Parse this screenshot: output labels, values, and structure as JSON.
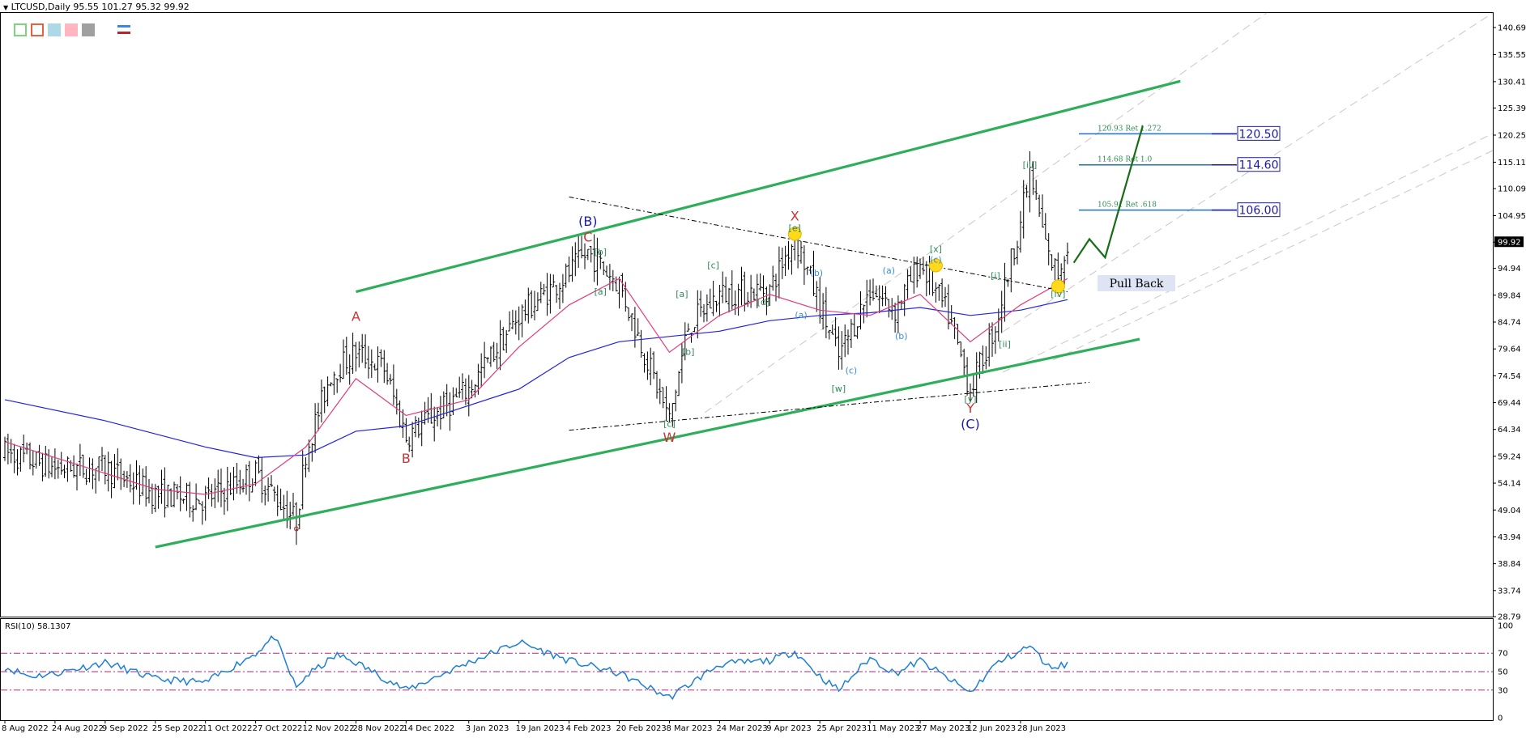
{
  "header": {
    "symbol_line": "LTCUSD,Daily  95.55 101.27 95.32 99.92",
    "rsi_line": "RSI(10) 58.1307"
  },
  "toolbar": {
    "buttons": [
      {
        "name": "color-box-green",
        "border": "#7ed37e",
        "fill": "#ffffff"
      },
      {
        "name": "color-box-red",
        "border": "#e8603c",
        "fill": "#ffffff"
      },
      {
        "name": "color-box-lightblue",
        "border": "#add8e6",
        "fill": "#add8e6"
      },
      {
        "name": "color-box-pink",
        "border": "#ffb6c1",
        "fill": "#ffb6c1"
      },
      {
        "name": "color-box-gray",
        "border": "#a0a0a0",
        "fill": "#a0a0a0"
      }
    ]
  },
  "chart_data": {
    "type": "candlestick",
    "symbol": "LTCUSD",
    "timeframe": "Daily",
    "ohlc_last": {
      "open": 95.55,
      "high": 101.27,
      "low": 95.32,
      "close": 99.92
    },
    "price_axis": {
      "ticks": [
        140.69,
        135.55,
        130.41,
        125.39,
        120.25,
        115.11,
        110.09,
        104.95,
        99.92,
        94.94,
        89.84,
        84.74,
        79.64,
        74.54,
        69.44,
        64.34,
        59.24,
        54.14,
        49.04,
        43.94,
        38.84,
        33.74,
        28.79
      ],
      "current_price": "99.92",
      "ylim": [
        28.79,
        140.69
      ]
    },
    "time_axis": [
      "8 Aug 2022",
      "24 Aug 2022",
      "9 Sep 2022",
      "25 Sep 2022",
      "11 Oct 2022",
      "27 Oct 2022",
      "12 Nov 2022",
      "28 Nov 2022",
      "14 Dec 2022",
      "3 Jan 2023",
      "19 Jan 2023",
      "4 Feb 2023",
      "20 Feb 2023",
      "8 Mar 2023",
      "24 Mar 2023",
      "9 Apr 2023",
      "25 Apr 2023",
      "11 May 2023",
      "27 May 2023",
      "12 Jun 2023",
      "28 Jun 2023"
    ],
    "price_path": [
      {
        "t": "8 Aug 2022",
        "p": 60
      },
      {
        "t": "24 Aug 2022",
        "p": 57
      },
      {
        "t": "9 Sep 2022",
        "p": 57
      },
      {
        "t": "25 Sep 2022",
        "p": 52
      },
      {
        "t": "11 Oct 2022",
        "p": 51
      },
      {
        "t": "27 Oct 2022",
        "p": 56
      },
      {
        "t": "9 Nov 2022",
        "p": 47
      },
      {
        "t": "12 Nov 2022",
        "p": 60
      },
      {
        "t": "20 Nov 2022",
        "p": 75
      },
      {
        "t": "28 Nov 2022",
        "p": 79
      },
      {
        "t": "7 Dec 2022",
        "p": 76
      },
      {
        "t": "14 Dec 2022",
        "p": 63
      },
      {
        "t": "3 Jan 2023",
        "p": 72
      },
      {
        "t": "19 Jan 2023",
        "p": 86
      },
      {
        "t": "4 Feb 2023",
        "p": 94
      },
      {
        "t": "10 Feb 2023",
        "p": 98
      },
      {
        "t": "20 Feb 2023",
        "p": 92
      },
      {
        "t": "8 Mar 2023",
        "p": 66
      },
      {
        "t": "14 Mar 2023",
        "p": 84
      },
      {
        "t": "24 Mar 2023",
        "p": 90
      },
      {
        "t": "9 Apr 2023",
        "p": 91
      },
      {
        "t": "17 Apr 2023",
        "p": 101
      },
      {
        "t": "25 Apr 2023",
        "p": 88
      },
      {
        "t": "1 May 2023",
        "p": 78
      },
      {
        "t": "11 May 2023",
        "p": 91
      },
      {
        "t": "19 May 2023",
        "p": 87
      },
      {
        "t": "27 May 2023",
        "p": 96
      },
      {
        "t": "5 Jun 2023",
        "p": 86
      },
      {
        "t": "12 Jun 2023",
        "p": 72
      },
      {
        "t": "20 Jun 2023",
        "p": 84
      },
      {
        "t": "28 Jun 2023",
        "p": 104
      },
      {
        "t": "1 Jul 2023",
        "p": 113
      },
      {
        "t": "7 Jul 2023",
        "p": 97
      },
      {
        "t": "10 Jul 2023",
        "p": 94
      },
      {
        "t": "13 Jul 2023",
        "p": 99.92
      }
    ],
    "ma_fast_path": [
      {
        "t": "8 Aug 2022",
        "p": 62
      },
      {
        "t": "25 Sep 2022",
        "p": 53
      },
      {
        "t": "11 Oct 2022",
        "p": 52
      },
      {
        "t": "27 Oct 2022",
        "p": 54
      },
      {
        "t": "12 Nov 2022",
        "p": 61
      },
      {
        "t": "28 Nov 2022",
        "p": 74
      },
      {
        "t": "14 Dec 2022",
        "p": 67
      },
      {
        "t": "3 Jan 2023",
        "p": 70
      },
      {
        "t": "19 Jan 2023",
        "p": 80
      },
      {
        "t": "4 Feb 2023",
        "p": 88
      },
      {
        "t": "20 Feb 2023",
        "p": 93
      },
      {
        "t": "8 Mar 2023",
        "p": 79
      },
      {
        "t": "24 Mar 2023",
        "p": 86
      },
      {
        "t": "9 Apr 2023",
        "p": 90
      },
      {
        "t": "25 Apr 2023",
        "p": 87
      },
      {
        "t": "11 May 2023",
        "p": 86
      },
      {
        "t": "27 May 2023",
        "p": 90
      },
      {
        "t": "12 Jun 2023",
        "p": 81
      },
      {
        "t": "28 Jun 2023",
        "p": 88
      },
      {
        "t": "13 Jul 2023",
        "p": 93
      }
    ],
    "ma_slow_path": [
      {
        "t": "8 Aug 2022",
        "p": 70
      },
      {
        "t": "9 Sep 2022",
        "p": 66
      },
      {
        "t": "11 Oct 2022",
        "p": 61
      },
      {
        "t": "27 Oct 2022",
        "p": 59
      },
      {
        "t": "12 Nov 2022",
        "p": 59.5
      },
      {
        "t": "28 Nov 2022",
        "p": 64
      },
      {
        "t": "14 Dec 2022",
        "p": 65
      },
      {
        "t": "19 Jan 2023",
        "p": 72
      },
      {
        "t": "4 Feb 2023",
        "p": 78
      },
      {
        "t": "20 Feb 2023",
        "p": 81
      },
      {
        "t": "8 Mar 2023",
        "p": 82
      },
      {
        "t": "24 Mar 2023",
        "p": 83
      },
      {
        "t": "9 Apr 2023",
        "p": 85
      },
      {
        "t": "25 Apr 2023",
        "p": 86
      },
      {
        "t": "11 May 2023",
        "p": 86.5
      },
      {
        "t": "27 May 2023",
        "p": 87.5
      },
      {
        "t": "12 Jun 2023",
        "p": 86
      },
      {
        "t": "28 Jun 2023",
        "p": 87
      },
      {
        "t": "13 Jul 2023",
        "p": 89
      }
    ],
    "channel_lines": [
      {
        "name": "channel-upper",
        "from": {
          "t": "28 Nov 2022",
          "p": 90.5
        },
        "to": {
          "t": "18 Aug 2023",
          "p": 130.5
        },
        "color": "#2fae5a"
      },
      {
        "name": "channel-lower",
        "from": {
          "t": "25 Sep 2022",
          "p": 42
        },
        "to": {
          "t": "5 Aug 2023",
          "p": 81.5
        },
        "color": "#2fae5a"
      }
    ],
    "dashed_lines": [
      {
        "from": {
          "t": "4 Feb 2023",
          "p": 108.5
        },
        "to": {
          "t": "13 Jul 2023",
          "p": 90.5
        }
      },
      {
        "from": {
          "t": "4 Feb 2023",
          "p": 64.2
        },
        "to": {
          "t": "20 Jul 2023",
          "p": 73.3
        }
      }
    ],
    "fib_levels": [
      {
        "value": 120.5,
        "label": "120.93 Ret 1.272",
        "box": "120.50"
      },
      {
        "value": 114.6,
        "label": "114.68 Ret 1.0",
        "box": "114.60"
      },
      {
        "value": 106.0,
        "label": "105.91 Ret .618",
        "box": "106.00"
      }
    ],
    "projection": [
      {
        "t": "15 Jul 2023",
        "p": 96
      },
      {
        "t": "20 Jul 2023",
        "p": 100.5
      },
      {
        "t": "25 Jul 2023",
        "p": 97
      },
      {
        "t": "6 Aug 2023",
        "p": 122
      }
    ],
    "annotation": "Pull Back",
    "wave_labels": [
      {
        "text": "o",
        "t": "9 Nov 2022",
        "p": 45,
        "color": "#a33"
      },
      {
        "text": "A",
        "t": "28 Nov 2022",
        "p": 85,
        "color": "#c33"
      },
      {
        "text": "B",
        "t": "14 Dec 2022",
        "p": 58,
        "color": "#c33"
      },
      {
        "text": "(B)",
        "t": "10 Feb 2023",
        "p": 103,
        "color": "#1a1aa6"
      },
      {
        "text": "C",
        "t": "10 Feb 2023",
        "p": 100,
        "color": "#c33"
      },
      {
        "text": "W",
        "t": "8 Mar 2023",
        "p": 62,
        "color": "#c33"
      },
      {
        "text": "X",
        "t": "17 Apr 2023",
        "p": 104,
        "color": "#c33"
      },
      {
        "text": "Y",
        "t": "12 Jun 2023",
        "p": 67.5,
        "color": "#c33"
      },
      {
        "text": "(C)",
        "t": "12 Jun 2023",
        "p": 64.5,
        "color": "#1a1aa6"
      },
      {
        "text": "[b]",
        "t": "14 Feb 2023",
        "p": 97.5,
        "color": "#2e8b57"
      },
      {
        "text": "[a]",
        "t": "14 Feb 2023",
        "p": 90,
        "color": "#2e8b57"
      },
      {
        "text": "[c]",
        "t": "8 Mar 2023",
        "p": 64.8,
        "color": "#2e8b57"
      },
      {
        "text": "[a]",
        "t": "12 Mar 2023",
        "p": 89.5,
        "color": "#2e8b57"
      },
      {
        "text": "[b]",
        "t": "14 Mar 2023",
        "p": 78.5,
        "color": "#2e8b57"
      },
      {
        "text": "[c]",
        "t": "22 Mar 2023",
        "p": 95,
        "color": "#2e8b57"
      },
      {
        "text": "[d]",
        "t": "7 Apr 2023",
        "p": 88,
        "color": "#2e8b57"
      },
      {
        "text": "[e]",
        "t": "17 Apr 2023",
        "p": 102,
        "color": "#2e8b57"
      },
      {
        "text": "[w]",
        "t": "1 May 2023",
        "p": 71.5,
        "color": "#2e8b57"
      },
      {
        "text": "[x]",
        "t": "1 Jun 2023",
        "p": 98,
        "color": "#2e8b57"
      },
      {
        "text": "[y]",
        "t": "12 Jun 2023",
        "p": 69.5,
        "color": "#2e8b57"
      },
      {
        "text": "[i]",
        "t": "20 Jun 2023",
        "p": 93,
        "color": "#2e8b57"
      },
      {
        "text": "[ii]",
        "t": "23 Jun 2023",
        "p": 80,
        "color": "#2e8b57"
      },
      {
        "text": "[iii]",
        "t": "1 Jul 2023",
        "p": 114,
        "color": "#2e8b57"
      },
      {
        "text": "[iv]",
        "t": "10 Jul 2023",
        "p": 89.5,
        "color": "#2e8b57"
      },
      {
        "text": "(a)",
        "t": "19 Apr 2023",
        "p": 85.5,
        "color": "#3a8fd6"
      },
      {
        "text": "(b)",
        "t": "24 Apr 2023",
        "p": 93.5,
        "color": "#3a8fd6"
      },
      {
        "text": "(c)",
        "t": "5 May 2023",
        "p": 75,
        "color": "#3a8fd6"
      },
      {
        "text": "(a)",
        "t": "17 May 2023",
        "p": 94,
        "color": "#3a8fd6"
      },
      {
        "text": "(b)",
        "t": "21 May 2023",
        "p": 81.5,
        "color": "#3a8fd6"
      },
      {
        "text": "(c)",
        "t": "1 Jun 2023",
        "p": 96,
        "color": "#3a8fd6"
      }
    ],
    "highlight_points": [
      {
        "t": "17 Apr 2023",
        "p": 101.5
      },
      {
        "t": "1 Jun 2023",
        "p": 95.5
      },
      {
        "t": "10 Jul 2023",
        "p": 91.5
      }
    ],
    "rsi": {
      "period": 10,
      "value": 58.1307,
      "ticks": [
        100,
        70,
        50,
        30,
        0
      ],
      "levels": [
        70,
        50,
        30
      ],
      "path": [
        {
          "t": "8 Aug 2022",
          "p": 55
        },
        {
          "t": "16 Aug 2022",
          "p": 45
        },
        {
          "t": "24 Aug 2022",
          "p": 48
        },
        {
          "t": "9 Sep 2022",
          "p": 60
        },
        {
          "t": "25 Sep 2022",
          "p": 42
        },
        {
          "t": "11 Oct 2022",
          "p": 38
        },
        {
          "t": "27 Oct 2022",
          "p": 70
        },
        {
          "t": "2 Nov 2022",
          "p": 88
        },
        {
          "t": "9 Nov 2022",
          "p": 32
        },
        {
          "t": "12 Nov 2022",
          "p": 45
        },
        {
          "t": "22 Nov 2022",
          "p": 68
        },
        {
          "t": "28 Nov 2022",
          "p": 60
        },
        {
          "t": "14 Dec 2022",
          "p": 30
        },
        {
          "t": "3 Jan 2023",
          "p": 60
        },
        {
          "t": "19 Jan 2023",
          "p": 82
        },
        {
          "t": "4 Feb 2023",
          "p": 62
        },
        {
          "t": "20 Feb 2023",
          "p": 48
        },
        {
          "t": "8 Mar 2023",
          "p": 22
        },
        {
          "t": "24 Mar 2023",
          "p": 58
        },
        {
          "t": "9 Apr 2023",
          "p": 62
        },
        {
          "t": "17 Apr 2023",
          "p": 72
        },
        {
          "t": "25 Apr 2023",
          "p": 45
        },
        {
          "t": "1 May 2023",
          "p": 30
        },
        {
          "t": "11 May 2023",
          "p": 65
        },
        {
          "t": "19 May 2023",
          "p": 48
        },
        {
          "t": "27 May 2023",
          "p": 62
        },
        {
          "t": "12 Jun 2023",
          "p": 27
        },
        {
          "t": "20 Jun 2023",
          "p": 58
        },
        {
          "t": "1 Jul 2023",
          "p": 78
        },
        {
          "t": "7 Jul 2023",
          "p": 55
        },
        {
          "t": "13 Jul 2023",
          "p": 58.13
        }
      ]
    }
  }
}
